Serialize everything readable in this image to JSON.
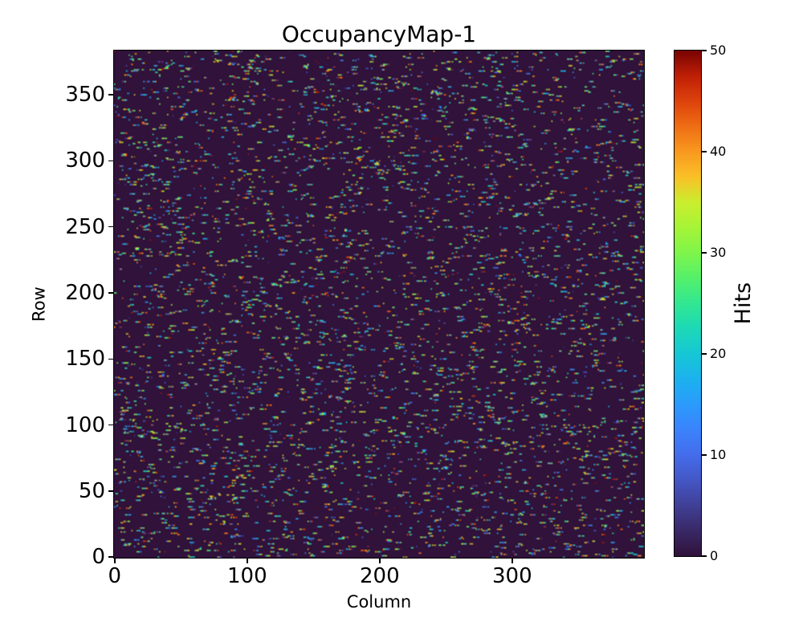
{
  "chart_data": {
    "type": "heatmap",
    "title": "OccupancyMap-1",
    "xlabel": "Column",
    "ylabel": "Row",
    "colorbar_label": "Hits",
    "cols": 400,
    "rows": 384,
    "xlim": [
      0,
      400
    ],
    "ylim": [
      0,
      384
    ],
    "value_range": [
      0,
      50
    ],
    "colormap": "turbo",
    "background_value": 0,
    "x_ticks": [
      0,
      100,
      200,
      300
    ],
    "y_ticks": [
      0,
      50,
      100,
      150,
      200,
      250,
      300,
      350
    ],
    "colorbar_ticks": [
      0,
      10,
      20,
      30,
      40,
      50
    ],
    "colors": {
      "zero_background": "#30123b",
      "max_value": "#7a0403",
      "text": "#000000",
      "figure_background": "#ffffff"
    },
    "pattern": {
      "description": "sparse random hits drawn as short horizontal runs of 1-5 cells on a zero-valued background, each hit cell an independent random value 1-50",
      "seed": 7,
      "run_start_probability": 0.028,
      "run_length_min": 1,
      "run_length_max": 5,
      "hit_value_min": 1,
      "hit_value_max": 50
    },
    "grid": false,
    "legend": "colorbar-right"
  }
}
